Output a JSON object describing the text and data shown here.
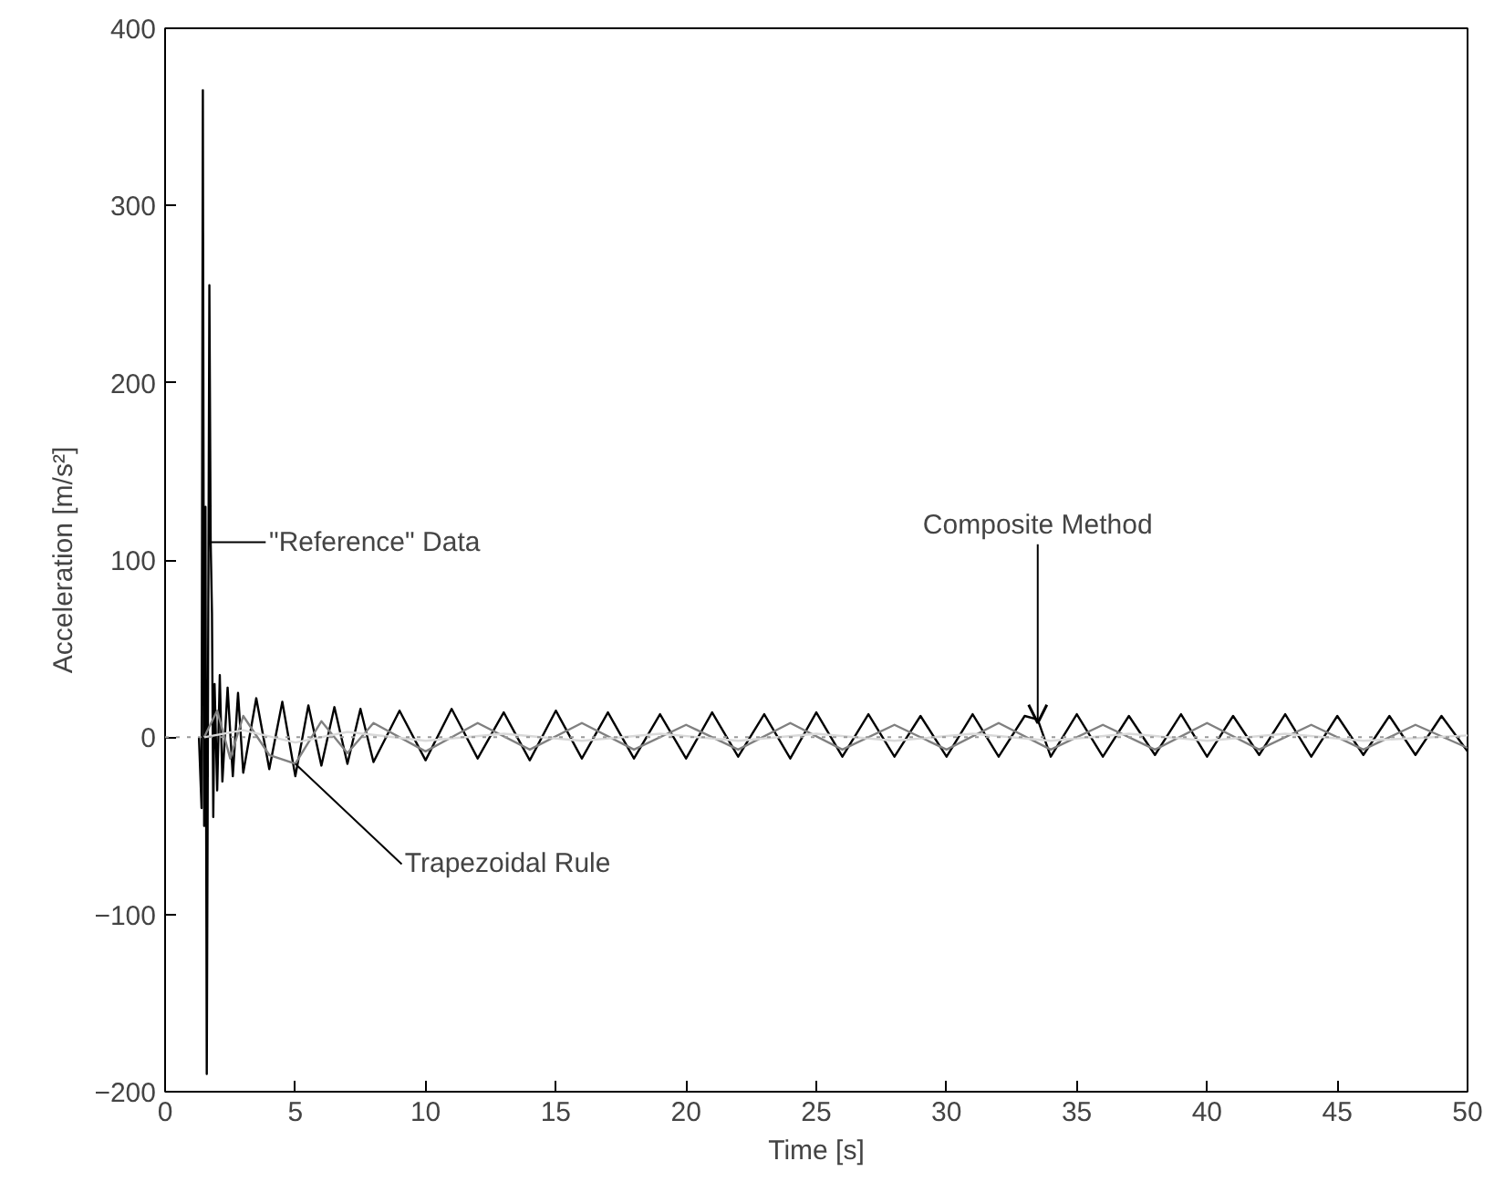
{
  "chart_data": {
    "type": "line",
    "xlabel": "Time [s]",
    "ylabel": "Acceleration [m/s²]",
    "xlim": [
      0,
      50
    ],
    "ylim": [
      -200,
      400
    ],
    "xticks": [
      0,
      5,
      10,
      15,
      20,
      25,
      30,
      35,
      40,
      45,
      50
    ],
    "yticks": [
      -200,
      -100,
      0,
      100,
      200,
      300,
      400
    ],
    "grid": false,
    "line_style": "solid",
    "ref_lines": [
      {
        "axis": "y",
        "value": 0,
        "color": "#999999",
        "line_style": "dotted"
      }
    ],
    "annotations": [
      {
        "text": "\"Reference\" Data",
        "x": 1.75,
        "y": 110
      },
      {
        "text": "Trapezoidal Rule",
        "x": 5,
        "y": -15
      },
      {
        "text": "Composite Method",
        "x": 33.5,
        "y": 8
      }
    ],
    "series": [
      {
        "color": "#000000",
        "x": [
          1.3,
          1.4,
          1.45,
          1.5,
          1.55,
          1.6,
          1.7,
          1.75,
          1.8,
          1.85,
          1.9,
          2.0,
          2.1,
          2.2,
          2.4,
          2.6,
          2.8,
          3.0,
          3.5,
          4.0,
          4.5,
          5.0,
          5.5,
          6.0,
          6.5,
          7.0,
          7.5,
          8.0,
          9.0,
          10.0,
          11.0,
          12.0,
          13.0,
          14.0,
          15.0,
          16.0,
          17.0,
          18.0,
          19.0,
          20.0,
          21.0,
          22.0,
          23.0,
          24.0,
          25.0,
          26.0,
          27.0,
          28.0,
          29.0,
          30.0,
          31.0,
          32.0,
          33.0,
          33.5,
          34.0,
          35.0,
          36.0,
          37.0,
          38.0,
          39.0,
          40.0,
          41.0,
          42.0,
          43.0,
          44.0,
          45.0,
          46.0,
          47.0,
          48.0,
          49.0,
          50.0
        ],
        "values": [
          0,
          -40,
          365,
          -50,
          130,
          -190,
          255,
          110,
          70,
          -45,
          30,
          -30,
          35,
          -25,
          28,
          -22,
          25,
          -20,
          22,
          -18,
          20,
          -22,
          18,
          -16,
          17,
          -15,
          16,
          -14,
          15,
          -13,
          16,
          -12,
          14,
          -13,
          15,
          -12,
          14,
          -12,
          13,
          -12,
          14,
          -11,
          13,
          -12,
          14,
          -11,
          13,
          -11,
          12,
          -11,
          13,
          -11,
          12,
          10,
          -11,
          13,
          -11,
          12,
          -10,
          13,
          -11,
          12,
          -10,
          13,
          -11,
          12,
          -10,
          12,
          -10,
          12,
          -8
        ]
      },
      {
        "color": "#808080",
        "x": [
          1.5,
          2.0,
          2.5,
          3.0,
          4.0,
          5.0,
          6.0,
          7.0,
          8.0,
          10.0,
          12.0,
          14.0,
          16.0,
          18.0,
          20.0,
          22.0,
          24.0,
          26.0,
          28.0,
          30.0,
          32.0,
          34.0,
          36.0,
          38.0,
          40.0,
          42.0,
          44.0,
          46.0,
          48.0,
          50.0
        ],
        "values": [
          0,
          15,
          -12,
          12,
          -10,
          -15,
          9,
          -9,
          8,
          -8,
          8,
          -7,
          8,
          -7,
          7,
          -7,
          8,
          -7,
          7,
          -7,
          8,
          -7,
          7,
          -7,
          8,
          -7,
          7,
          -7,
          7,
          -6
        ]
      },
      {
        "color": "#d9d9d9",
        "x": [
          1.5,
          3.0,
          5.0,
          7.0,
          10.0,
          13.0,
          16.0,
          19.0,
          22.0,
          25.0,
          28.0,
          31.0,
          34.0,
          37.0,
          40.0,
          43.0,
          46.0,
          50.0
        ],
        "values": [
          0,
          4,
          -3,
          3,
          -2,
          2,
          -2,
          2,
          -2,
          2,
          -2,
          2,
          -2,
          2,
          -2,
          2,
          -2,
          1
        ]
      }
    ]
  }
}
